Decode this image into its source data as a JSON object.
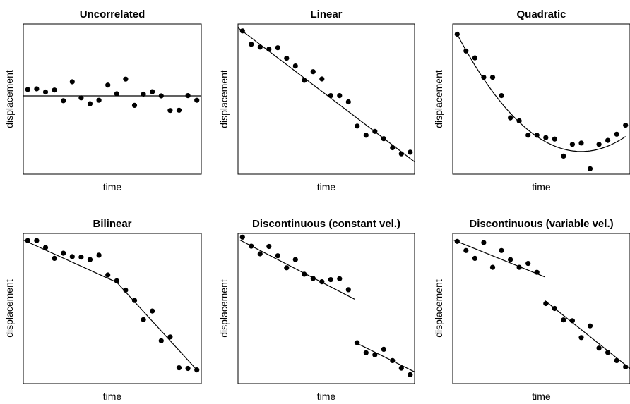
{
  "chart_data": [
    {
      "type": "scatter",
      "title": "Uncorrelated",
      "xlabel": "time",
      "ylabel": "displacement",
      "xlim": [
        0,
        20
      ],
      "ylim": [
        0,
        100
      ],
      "series": [
        {
          "points": [
            [
              0.5,
              56.4
            ],
            [
              1.5,
              56.8
            ],
            [
              2.5,
              54.7
            ],
            [
              3.5,
              56.0
            ],
            [
              4.5,
              48.9
            ],
            [
              5.5,
              61.5
            ],
            [
              6.5,
              50.8
            ],
            [
              7.5,
              46.9
            ],
            [
              8.5,
              49.2
            ],
            [
              9.5,
              59.3
            ],
            [
              10.5,
              53.5
            ],
            [
              11.5,
              63.3
            ],
            [
              12.5,
              45.8
            ],
            [
              13.5,
              53.3
            ],
            [
              14.5,
              54.9
            ],
            [
              15.5,
              52.1
            ],
            [
              16.5,
              42.4
            ],
            [
              17.5,
              42.6
            ],
            [
              18.5,
              52.3
            ],
            [
              19.5,
              49.2
            ]
          ]
        }
      ],
      "fit": {
        "kind": "polyline",
        "segments": [
          [
            [
              0,
              52.1
            ],
            [
              20,
              52.1
            ]
          ]
        ]
      }
    },
    {
      "type": "scatter",
      "title": "Linear",
      "xlabel": "time",
      "ylabel": "displacement",
      "xlim": [
        0,
        20
      ],
      "ylim": [
        0,
        100
      ],
      "series": [
        {
          "points": [
            [
              0.5,
              95.4
            ],
            [
              1.5,
              86.5
            ],
            [
              2.5,
              84.6
            ],
            [
              3.5,
              83.2
            ],
            [
              4.5,
              84.2
            ],
            [
              5.5,
              77.2
            ],
            [
              6.5,
              72.0
            ],
            [
              7.5,
              62.5
            ],
            [
              8.5,
              68.2
            ],
            [
              9.5,
              63.4
            ],
            [
              10.5,
              52.3
            ],
            [
              11.5,
              52.3
            ],
            [
              12.5,
              48.1
            ],
            [
              13.5,
              32.0
            ],
            [
              14.5,
              25.9
            ],
            [
              15.5,
              28.5
            ],
            [
              16.5,
              23.6
            ],
            [
              17.5,
              17.6
            ],
            [
              18.5,
              13.5
            ],
            [
              19.5,
              14.6
            ]
          ]
        }
      ],
      "fit": {
        "kind": "polyline",
        "segments": [
          [
            [
              0,
              97.5
            ],
            [
              20,
              8.2
            ]
          ]
        ]
      }
    },
    {
      "type": "scatter",
      "title": "Quadratic",
      "xlabel": "time",
      "ylabel": "displacement",
      "xlim": [
        0,
        20
      ],
      "ylim": [
        0,
        100
      ],
      "series": [
        {
          "points": [
            [
              0.5,
              93.2
            ],
            [
              1.5,
              82.0
            ],
            [
              2.5,
              77.4
            ],
            [
              3.5,
              64.5
            ],
            [
              4.5,
              64.5
            ],
            [
              5.5,
              52.3
            ],
            [
              6.5,
              37.5
            ],
            [
              7.5,
              35.5
            ],
            [
              8.5,
              25.9
            ],
            [
              9.5,
              25.9
            ],
            [
              10.5,
              24.3
            ],
            [
              11.5,
              23.4
            ],
            [
              12.5,
              12.0
            ],
            [
              13.5,
              19.8
            ],
            [
              14.5,
              20.7
            ],
            [
              15.5,
              3.6
            ],
            [
              16.5,
              19.8
            ],
            [
              17.5,
              22.5
            ],
            [
              18.5,
              26.6
            ],
            [
              19.5,
              32.6
            ]
          ]
        }
      ],
      "fit": {
        "kind": "quadratic",
        "vertex": [
          14.5,
          15.1
        ],
        "y_at_x0": 93.2,
        "x_range": [
          0.5,
          19.5
        ]
      }
    },
    {
      "type": "scatter",
      "title": "Bilinear",
      "xlabel": "time",
      "ylabel": "displacement",
      "xlim": [
        0,
        20
      ],
      "ylim": [
        0,
        100
      ],
      "series": [
        {
          "points": [
            [
              0.5,
              95.2
            ],
            [
              1.5,
              95.2
            ],
            [
              2.5,
              90.6
            ],
            [
              3.5,
              83.4
            ],
            [
              4.5,
              86.8
            ],
            [
              5.5,
              84.5
            ],
            [
              6.5,
              84.2
            ],
            [
              7.5,
              82.6
            ],
            [
              8.5,
              85.5
            ],
            [
              9.5,
              72.3
            ],
            [
              10.5,
              68.4
            ],
            [
              11.5,
              62.2
            ],
            [
              12.5,
              55.3
            ],
            [
              13.5,
              42.6
            ],
            [
              14.5,
              48.3
            ],
            [
              15.5,
              28.5
            ],
            [
              16.5,
              31.1
            ],
            [
              17.5,
              10.5
            ],
            [
              18.5,
              10.1
            ],
            [
              19.5,
              9.1
            ]
          ]
        }
      ],
      "fit": {
        "kind": "polyline",
        "segments": [
          [
            [
              0,
              95.6
            ],
            [
              10.5,
              67.4
            ],
            [
              19.5,
              9.1
            ]
          ]
        ]
      }
    },
    {
      "type": "scatter",
      "title": "Discontinuous (constant vel.)",
      "xlabel": "time",
      "ylabel": "displacement",
      "xlim": [
        0,
        20
      ],
      "ylim": [
        0,
        100
      ],
      "series": [
        {
          "points": [
            [
              0.5,
              97.5
            ],
            [
              1.5,
              91.5
            ],
            [
              2.5,
              86.4
            ],
            [
              3.5,
              91.3
            ],
            [
              4.5,
              85.1
            ],
            [
              5.5,
              77.1
            ],
            [
              6.5,
              82.6
            ],
            [
              7.5,
              72.8
            ],
            [
              8.5,
              70.0
            ],
            [
              9.5,
              67.8
            ],
            [
              10.5,
              69.2
            ],
            [
              11.5,
              69.8
            ],
            [
              12.5,
              62.5
            ],
            [
              13.5,
              27.2
            ],
            [
              14.5,
              20.5
            ],
            [
              15.5,
              19.1
            ],
            [
              16.5,
              22.8
            ],
            [
              17.5,
              15.3
            ],
            [
              18.5,
              10.3
            ],
            [
              19.5,
              5.9
            ]
          ]
        }
      ],
      "fit": {
        "kind": "polyline",
        "segments": [
          [
            [
              0.2,
              95.6
            ],
            [
              13.2,
              56.2
            ]
          ],
          [
            [
              13.2,
              27.6
            ],
            [
              20.3,
              6.9
            ]
          ]
        ]
      }
    },
    {
      "type": "scatter",
      "title": "Discontinuous (variable vel.)",
      "xlabel": "time",
      "ylabel": "displacement",
      "xlim": [
        0,
        20
      ],
      "ylim": [
        0,
        100
      ],
      "series": [
        {
          "points": [
            [
              0.5,
              94.7
            ],
            [
              1.5,
              88.6
            ],
            [
              2.5,
              83.4
            ],
            [
              3.5,
              93.9
            ],
            [
              4.5,
              77.4
            ],
            [
              5.5,
              88.6
            ],
            [
              6.5,
              82.6
            ],
            [
              7.5,
              77.4
            ],
            [
              8.5,
              80.0
            ],
            [
              9.5,
              74.1
            ],
            [
              10.5,
              53.3
            ],
            [
              11.5,
              50.0
            ],
            [
              12.5,
              42.4
            ],
            [
              13.5,
              41.9
            ],
            [
              14.5,
              30.6
            ],
            [
              15.5,
              38.4
            ],
            [
              16.5,
              23.6
            ],
            [
              17.5,
              20.7
            ],
            [
              18.5,
              15.3
            ],
            [
              19.5,
              11.1
            ]
          ]
        }
      ],
      "fit": {
        "kind": "polyline",
        "segments": [
          [
            [
              0.1,
              95.6
            ],
            [
              10.4,
              71.0
            ]
          ],
          [
            [
              10.4,
              55.2
            ],
            [
              20.4,
              8.1
            ]
          ]
        ]
      }
    }
  ]
}
